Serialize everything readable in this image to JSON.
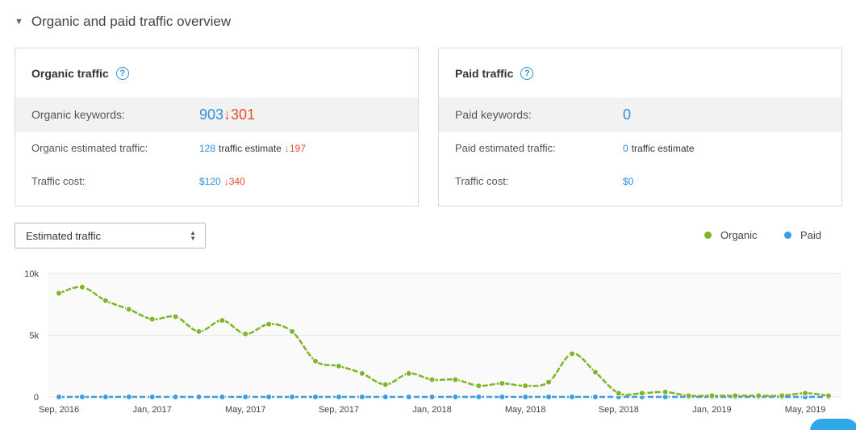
{
  "section": {
    "title": "Organic and paid traffic overview"
  },
  "organic": {
    "title": "Organic traffic",
    "keywords_label": "Organic keywords:",
    "keywords_value": "903",
    "keywords_change": "301",
    "traffic_label": "Organic estimated traffic:",
    "traffic_value": "128",
    "traffic_unit": "traffic estimate",
    "traffic_change": "197",
    "cost_label": "Traffic cost:",
    "cost_value": "$120",
    "cost_change": "340"
  },
  "paid": {
    "title": "Paid traffic",
    "keywords_label": "Paid keywords:",
    "keywords_value": "0",
    "traffic_label": "Paid estimated traffic:",
    "traffic_value": "0",
    "traffic_unit": "traffic estimate",
    "cost_label": "Traffic cost:",
    "cost_value": "$0"
  },
  "metric_select": {
    "value": "Estimated traffic"
  },
  "legend": {
    "organic": "Organic",
    "paid": "Paid"
  },
  "colors": {
    "organic": "#7fb528",
    "paid": "#3a9ee3",
    "link": "#2d8ee0",
    "decrease": "#e0502d"
  },
  "chart_data": {
    "type": "line",
    "y_ticks": [
      "10k",
      "5k",
      "0"
    ],
    "ylim": [
      0,
      10000
    ],
    "x_ticks": [
      "Sep, 2016",
      "Jan, 2017",
      "May, 2017",
      "Sep, 2017",
      "Jan, 2018",
      "May, 2018",
      "Sep, 2018",
      "Jan, 2019",
      "May, 2019"
    ],
    "x": [
      "2016-09",
      "2016-10",
      "2016-11",
      "2016-12",
      "2017-01",
      "2017-02",
      "2017-03",
      "2017-04",
      "2017-05",
      "2017-06",
      "2017-07",
      "2017-08",
      "2017-09",
      "2017-10",
      "2017-11",
      "2017-12",
      "2018-01",
      "2018-02",
      "2018-03",
      "2018-04",
      "2018-05",
      "2018-06",
      "2018-07",
      "2018-08",
      "2018-09",
      "2018-10",
      "2018-11",
      "2018-12",
      "2019-01",
      "2019-02",
      "2019-03",
      "2019-04",
      "2019-05",
      "2019-06"
    ],
    "series": [
      {
        "name": "Organic",
        "values": [
          8400,
          8900,
          7800,
          7100,
          6300,
          6500,
          5300,
          6200,
          5100,
          5900,
          5300,
          2900,
          2500,
          1900,
          1000,
          1900,
          1400,
          1400,
          900,
          1100,
          900,
          1200,
          3500,
          2000,
          300,
          300,
          400,
          100,
          100,
          100,
          100,
          100,
          300,
          100
        ]
      },
      {
        "name": "Paid",
        "values": [
          0,
          0,
          0,
          0,
          0,
          0,
          0,
          0,
          0,
          0,
          0,
          0,
          0,
          0,
          0,
          0,
          0,
          0,
          0,
          0,
          0,
          0,
          0,
          0,
          0,
          0,
          0,
          0,
          0,
          0,
          0,
          0,
          0,
          0
        ]
      }
    ],
    "grid": true
  }
}
